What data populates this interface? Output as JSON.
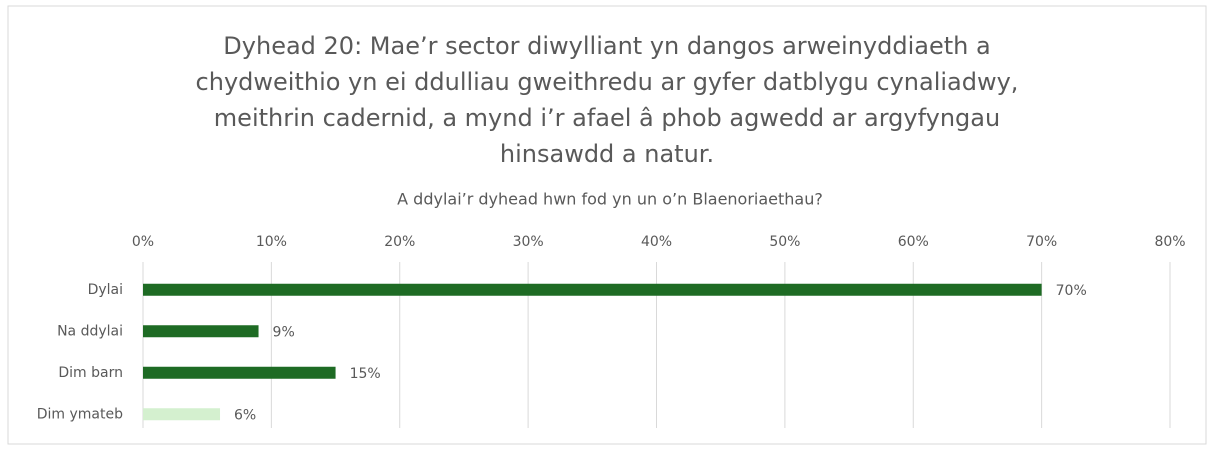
{
  "chart_data": {
    "type": "bar",
    "orientation": "horizontal",
    "title": "Dyhead 20: Mae’r sector diwylliant yn dangos arweinyddiaeth a chydweithio yn ei ddulliau gweithredu ar gyfer datblygu cynaliadwy, meithrin cadernid, a mynd i’r afael â phob agwedd ar argyfyngau hinsawdd a natur.",
    "subtitle": "A ddylai’r dyhead hwn fod yn un o’n Blaenoriaethau?",
    "categories": [
      "Dylai",
      "Na ddylai",
      "Dim barn",
      "Dim ymateb"
    ],
    "values": [
      70,
      9,
      15,
      6
    ],
    "value_labels": [
      "70%",
      "9%",
      "15%",
      "6%"
    ],
    "colors": [
      "#1e6b24",
      "#1e6b24",
      "#1e6b24",
      "#d4f0cf"
    ],
    "xlim": [
      0,
      80
    ],
    "xticks": [
      {
        "value": 0,
        "label": "0%"
      },
      {
        "value": 10,
        "label": "10%"
      },
      {
        "value": 20,
        "label": "20%"
      },
      {
        "value": 30,
        "label": "30%"
      },
      {
        "value": 40,
        "label": "40%"
      },
      {
        "value": 50,
        "label": "50%"
      },
      {
        "value": 60,
        "label": "60%"
      },
      {
        "value": 70,
        "label": "70%"
      },
      {
        "value": 80,
        "label": "80%"
      }
    ],
    "grid": true
  }
}
